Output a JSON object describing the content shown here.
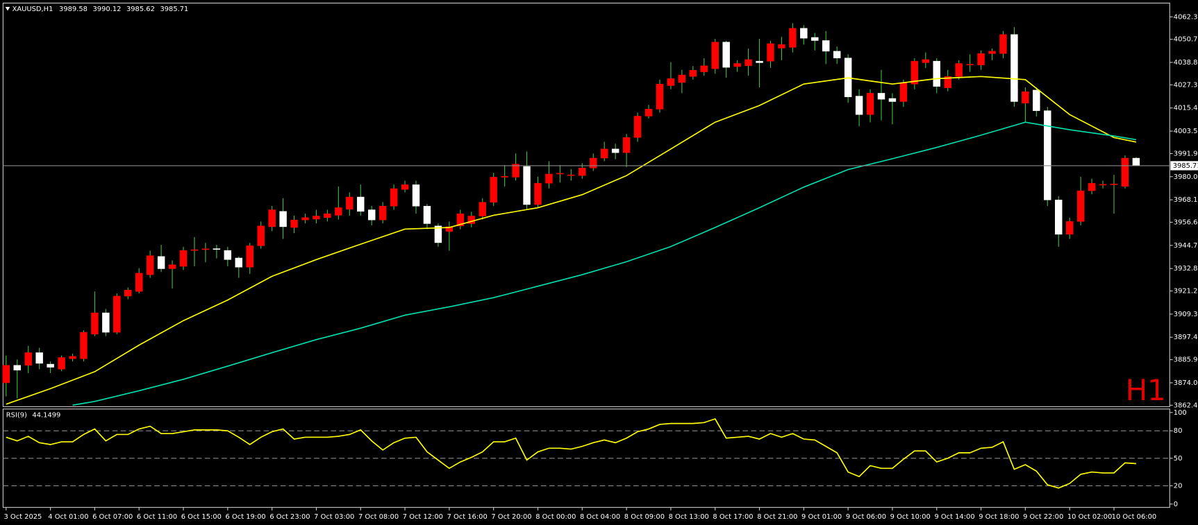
{
  "chart_data": {
    "type": "candlestick",
    "symbol": "XAUUSD,H1",
    "watermark": "H1",
    "up_color": "#ff0000",
    "down_color": "#ffffff",
    "wick_color": "#3fbf3f",
    "price_line_color": "#8a8a8a",
    "grid": false,
    "categories": [
      "3 Oct 2025",
      null,
      null,
      null,
      "4 Oct 01:00",
      null,
      null,
      null,
      "6 Oct 07:00",
      null,
      null,
      null,
      "6 Oct 11:00",
      null,
      null,
      null,
      "6 Oct 15:00",
      null,
      null,
      null,
      "6 Oct 19:00",
      null,
      null,
      null,
      "6 Oct 23:00",
      null,
      null,
      null,
      "7 Oct 03:00",
      null,
      null,
      null,
      "7 Oct 08:00",
      null,
      null,
      null,
      "7 Oct 12:00",
      null,
      null,
      null,
      "7 Oct 16:00",
      null,
      null,
      null,
      "7 Oct 20:00",
      null,
      null,
      null,
      "8 Oct 00:00",
      null,
      null,
      null,
      "8 Oct 04:00",
      null,
      null,
      null,
      "8 Oct 09:00",
      null,
      null,
      null,
      "8 Oct 13:00",
      null,
      null,
      null,
      "8 Oct 17:00",
      null,
      null,
      null,
      "8 Oct 21:00",
      null,
      null,
      null,
      "9 Oct 01:00",
      null,
      null,
      null,
      "9 Oct 06:00",
      null,
      null,
      null,
      "9 Oct 10:00",
      null,
      null,
      null,
      "9 Oct 14:00",
      null,
      null,
      null,
      "9 Oct 18:00",
      null,
      null,
      null,
      "9 Oct 22:00",
      null,
      null,
      null,
      "10 Oct 02:00",
      null,
      null,
      null,
      "10 Oct 06:00",
      null,
      null
    ],
    "open": [
      3874,
      3883,
      3883,
      3889.5,
      3883.6,
      3881,
      3886.4,
      3886.4,
      3899,
      3910,
      3900,
      3918.6,
      3921,
      3929.6,
      3939,
      3932.7,
      3933.9,
      3942.1,
      3942.5,
      3943,
      3942.1,
      3938.2,
      3933.5,
      3944.5,
      3954.3,
      3962.2,
      3953.9,
      3957.8,
      3958.2,
      3959,
      3960.2,
      3963.3,
      3969.6,
      3963,
      3957.8,
      3964.9,
      3973.5,
      3975.9,
      3964.9,
      3954.7,
      3951.9,
      3954.7,
      3955.9,
      3959.8,
      3966.9,
      3979.8,
      3979.8,
      3985.3,
      3965.7,
      3976.7,
      3981.4,
      3980.6,
      3980.6,
      3984.5,
      3989.6,
      3994.3,
      3992.4,
      4000.2,
      4011.2,
      4014.8,
      4026.9,
      4028.5,
      4031.6,
      4034,
      4035.6,
      4049.3,
      4036.7,
      4037.1,
      4039.5,
      4039.5,
      4046.2,
      4046.6,
      4056.4,
      4051.7,
      4050.1,
      4044.6,
      4041.1,
      4021.5,
      4012,
      4023,
      4020.3,
      4018.7,
      4027.7,
      4038.7,
      4039.5,
      4025.8,
      4031.6,
      4037.5,
      4037.5,
      4043.4,
      4043.4,
      4053.2,
      4017.9,
      4024.6,
      4014,
      3968.1,
      3950.4,
      3957,
      3972.8,
      3975.9,
      3975.9,
      3975.1,
      3989.58
    ],
    "high": [
      3888,
      3886,
      3893,
      3892,
      3885,
      3888,
      3889,
      3901,
      3921,
      3912,
      3920,
      3923,
      3933,
      3942,
      3945,
      3937,
      3944,
      3949,
      3946,
      3945,
      3944,
      3939,
      3946,
      3957,
      3965,
      3969,
      3960,
      3961,
      3963,
      3963,
      3975,
      3972,
      3976,
      3965,
      3967,
      3976,
      3978,
      3978,
      3966,
      3956,
      3957,
      3963,
      3962,
      3969,
      3982,
      3986,
      3992,
      3993,
      3980,
      3988,
      3986,
      3984,
      3987,
      3992,
      3998,
      3997,
      4002,
      4013,
      4017,
      4030,
      4039,
      4035,
      4037,
      4041,
      4051,
      4050,
      4040,
      4046,
      4051,
      4050,
      4052,
      4059,
      4058,
      4054,
      4055,
      4047,
      4043,
      4025,
      4025,
      4035,
      4023,
      4030,
      4041,
      4044,
      4041,
      4035,
      4040,
      4043,
      4045,
      4046,
      4055,
      4057,
      4026,
      4026,
      4016,
      3970,
      3959,
      3980,
      3979,
      3978,
      3981,
      3991,
      3990.12
    ],
    "low": [
      3867,
      3866,
      3879,
      3881,
      3879,
      3880,
      3885,
      3885,
      3898,
      3898,
      3899,
      3917,
      3920,
      3928,
      3931,
      3922.5,
      3932,
      3934,
      3936,
      3938,
      3934,
      3928,
      3930,
      3943,
      3952,
      3948,
      3951,
      3956,
      3956,
      3957,
      3958,
      3960,
      3960,
      3955,
      3956,
      3963,
      3972,
      3961,
      3953,
      3944,
      3942,
      3953,
      3954,
      3958,
      3965,
      3975,
      3978,
      3963,
      3964,
      3974,
      3977,
      3978,
      3979,
      3983,
      3988,
      3989,
      3985,
      3998,
      4010,
      4013,
      4025,
      4023,
      4030,
      4032,
      4033,
      4031,
      4034,
      4032,
      4026,
      4036,
      4040,
      4044,
      4048,
      4045,
      4038,
      4038,
      4018,
      4006,
      4008,
      4009,
      4007,
      4016,
      4025,
      4036,
      4023,
      4024,
      4030,
      4034,
      4035,
      4040,
      4041,
      4016,
      4008,
      4011,
      3965,
      3944,
      3948,
      3955,
      3971,
      3974,
      3961,
      3974,
      3985.62
    ],
    "close": [
      3883,
      3880.5,
      3889.5,
      3884,
      3882,
      3887,
      3887.6,
      3900,
      3910,
      3900,
      3918.6,
      3921.7,
      3930.4,
      3939.4,
      3932.7,
      3934.7,
      3942.1,
      3942.5,
      3942.9,
      3943,
      3937.4,
      3933.5,
      3944.5,
      3954.7,
      3963,
      3954.3,
      3957.8,
      3959,
      3959.8,
      3961,
      3964.1,
      3969.6,
      3962.2,
      3957.8,
      3964.9,
      3973.9,
      3975.9,
      3964.9,
      3955.9,
      3946.1,
      3954.3,
      3961,
      3959.8,
      3966.9,
      3979.8,
      3980.2,
      3986.5,
      3965.7,
      3976.7,
      3981.4,
      3981.8,
      3981,
      3984.5,
      3989.6,
      3994.3,
      3992.4,
      4000.2,
      4011.2,
      4014.8,
      4027.7,
      4030.5,
      4032.4,
      4034.8,
      4037.1,
      4049.3,
      4036.3,
      4038.3,
      4040.3,
      4038.7,
      4048.5,
      4048.1,
      4056.4,
      4051.3,
      4050.1,
      4044.6,
      4041.1,
      4021.1,
      4012,
      4023,
      4019.9,
      4018.7,
      4028.5,
      4039.5,
      4040.3,
      4026.5,
      4031.6,
      4038.3,
      4037.9,
      4043.4,
      4044.6,
      4053.2,
      4018.7,
      4023.8,
      4014,
      3968.1,
      3950.4,
      3957,
      3972.8,
      3976.7,
      3976.1,
      3976.3,
      3989.6,
      3985.71
    ],
    "lines": [
      {
        "color": "#ffff00",
        "x": [
          0,
          4,
          8,
          12,
          16,
          20,
          24,
          28,
          32,
          36,
          40,
          44,
          48,
          52,
          56,
          60,
          64,
          68,
          72,
          76,
          80,
          84,
          88,
          92,
          96,
          100,
          102
        ],
        "values": [
          3863,
          3871,
          3879.7,
          3893.4,
          3906,
          3916.6,
          3928.8,
          3937.4,
          3945.3,
          3953.1,
          3953.9,
          3960.2,
          3964.1,
          3970.8,
          3980.6,
          3994.3,
          4008.1,
          4016.7,
          4027.7,
          4030.9,
          4027.7,
          4030.5,
          4031.6,
          4030,
          4012,
          4000.2,
          3997.9
        ]
      },
      {
        "color": "#00e0b0",
        "x": [
          6,
          8,
          12,
          16,
          20,
          24,
          28,
          32,
          36,
          40,
          44,
          48,
          52,
          56,
          60,
          64,
          68,
          72,
          76,
          80,
          84,
          88,
          92,
          96,
          100,
          102
        ],
        "values": [
          3862.5,
          3864.4,
          3869.9,
          3875.8,
          3882.6,
          3889.5,
          3896.2,
          3902.1,
          3908.8,
          3913.1,
          3917.8,
          3923.7,
          3929.6,
          3936.3,
          3944.1,
          3953.9,
          3964.1,
          3974.7,
          3983.7,
          3989.3,
          3995.1,
          4001.4,
          4008.1,
          4004.2,
          4001.0,
          3999.1
        ]
      }
    ],
    "ylim": [
      3861.7,
      4067.8
    ],
    "yticks": [
      {
        "value": 4062.3,
        "label": "4062.30"
      },
      4050.75,
      4038.85,
      {
        "value": 4027.3,
        "label": "4027.30"
      },
      {
        "value": 4015.4,
        "label": "4015.40"
      },
      {
        "value": 4003.5,
        "label": "4003.50"
      },
      3991.95,
      3980.05,
      3968.15,
      {
        "value": 3956.6,
        "label": "3956.60"
      },
      {
        "value": 3944.7,
        "label": "3944.70"
      },
      {
        "value": 3932.8,
        "label": "3932.80"
      },
      3921.25,
      3909.35,
      3897.45,
      {
        "value": 3885.9,
        "label": "3885.90"
      },
      {
        "value": 3874,
        "label": "3874.00"
      },
      3862.45
    ],
    "indicator": {
      "type": "line",
      "label": "RSI(9)",
      "color": "#ffff00",
      "values": [
        73,
        69,
        74,
        67,
        65,
        68,
        68,
        76,
        82,
        69,
        76,
        76,
        82,
        85,
        77,
        77,
        79,
        81,
        81,
        81,
        80,
        73,
        65,
        73,
        79,
        82,
        71,
        73,
        73,
        73,
        74,
        76,
        81,
        69,
        59,
        67,
        72,
        73,
        57,
        48,
        39,
        46,
        51,
        57,
        68,
        68,
        72,
        48,
        57,
        61,
        61,
        60,
        63,
        67,
        70,
        67,
        72,
        79,
        82,
        87,
        88,
        88,
        88,
        89,
        93,
        72,
        73,
        74,
        71,
        77,
        73,
        77,
        71,
        70,
        63,
        56,
        35,
        30,
        42,
        39,
        39,
        49,
        58,
        58,
        46,
        50,
        56,
        56,
        61,
        62,
        68,
        38,
        43,
        36,
        21,
        17.5,
        22.5,
        32.5,
        35,
        34,
        34,
        45,
        44.1499
      ],
      "ylim": [
        -2,
        103
      ],
      "yticks": [
        100,
        80,
        50,
        20,
        0
      ]
    }
  }
}
